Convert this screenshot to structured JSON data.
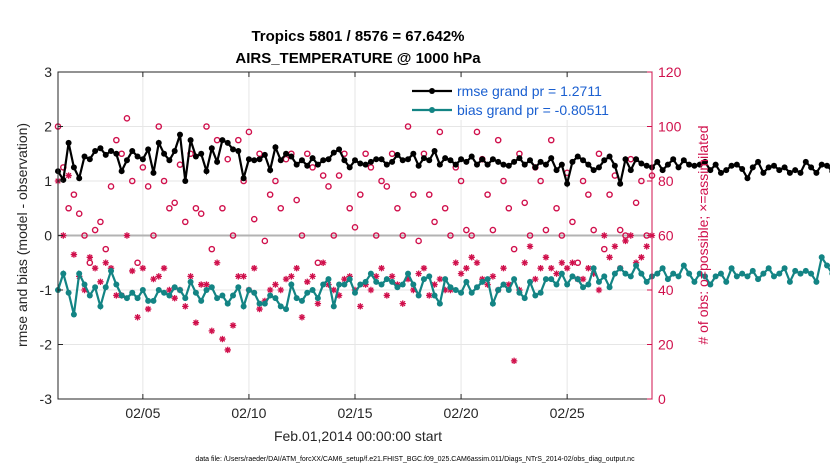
{
  "chart_data": {
    "type": "line",
    "title": "Tropics 5801 / 8576 = 67.642%",
    "subtitle": "AIRS_TEMPERATURE @ 1000 hPa",
    "xlabel": "Feb.01,2014 00:00:00 start",
    "ylabel_left": "rmse and bias (model - observation)",
    "ylabel_right": "# of obs: o=possible; ×=assimilated",
    "footer": "data file: /Users/raeder/DAI/ATM_forcXX/CAM6_setup/f.e21.FHIST_BGC.f09_025.CAM6assim.011/Diags_NTrS_2014-02/obs_diag_output.nc",
    "xlim": [
      1.0,
      29.0
    ],
    "ylim_left": [
      -3,
      3
    ],
    "ylim_right": [
      0,
      120
    ],
    "x_tick_values": [
      5,
      10,
      15,
      20,
      25
    ],
    "x_tick_labels": [
      "02/05",
      "02/10",
      "02/15",
      "02/20",
      "02/25"
    ],
    "y_left_ticks": [
      "-3",
      "-2",
      "-1",
      "0",
      "1",
      "2",
      "3"
    ],
    "y_right_ticks": [
      "0",
      "20",
      "40",
      "60",
      "80",
      "100",
      "120"
    ],
    "zero_line": 0,
    "grid": true,
    "legend": {
      "position": "top-right"
    },
    "colors": {
      "rmse": "#000000",
      "bias": "#138484",
      "obs": "#d0104c",
      "legend_text": "#1a5fd0",
      "zero_line": "#b3b3b3",
      "grid": "#e6e6e6"
    },
    "x_start": 1.0,
    "x_step": 0.25,
    "series": [
      {
        "name": "rmse grand pr = 1.2711",
        "axis": "left",
        "values": [
          1.18,
          1.02,
          1.7,
          1.25,
          1.05,
          1.45,
          1.4,
          1.55,
          1.6,
          1.48,
          1.55,
          1.5,
          1.18,
          1.38,
          1.55,
          1.45,
          1.4,
          1.58,
          1.15,
          1.7,
          1.5,
          1.38,
          1.55,
          1.85,
          1.0,
          1.75,
          1.45,
          1.5,
          1.18,
          1.6,
          1.35,
          1.75,
          1.7,
          1.58,
          1.55,
          1.05,
          1.4,
          1.38,
          1.4,
          1.48,
          1.2,
          1.62,
          1.38,
          1.5,
          1.45,
          1.3,
          1.38,
          1.28,
          1.42,
          1.3,
          1.38,
          1.4,
          1.52,
          1.58,
          1.38,
          1.25,
          1.38,
          1.32,
          1.3,
          1.35,
          1.4,
          1.4,
          1.3,
          1.35,
          1.48,
          1.38,
          1.4,
          1.5,
          1.28,
          1.42,
          1.38,
          1.55,
          1.3,
          1.42,
          1.38,
          1.3,
          1.4,
          1.35,
          1.45,
          1.3,
          1.4,
          1.3,
          1.4,
          1.35,
          1.3,
          1.28,
          1.35,
          1.42,
          1.3,
          1.38,
          1.25,
          1.35,
          1.3,
          1.42,
          1.2,
          1.3,
          0.95,
          1.35,
          1.45,
          1.38,
          1.3,
          1.2,
          1.25,
          1.38,
          1.45,
          1.28,
          0.95,
          1.4,
          1.2,
          1.4,
          1.32,
          1.28,
          1.25,
          1.35,
          1.2,
          1.3,
          1.4,
          1.25,
          1.38,
          1.3,
          1.28,
          1.3,
          1.35,
          1.2,
          1.3,
          1.15,
          1.2,
          1.28,
          1.3,
          1.22,
          1.05,
          1.25,
          1.35,
          1.15,
          1.25,
          1.28,
          1.2,
          1.25,
          1.15,
          1.2,
          1.15,
          1.35,
          1.25,
          1.15,
          1.3,
          1.28,
          1.18,
          1.12,
          1.2,
          1.35,
          1.25,
          1.1,
          1.15,
          1.25,
          1.3,
          1.15,
          1.05,
          1.2,
          1.1,
          1.1,
          1.2,
          1.1,
          1.25,
          1.15,
          1.35,
          1.25,
          1.15,
          1.0,
          1.3,
          1.15,
          1.05,
          1.15,
          1.05,
          1.1,
          1.2,
          1.15,
          1.1,
          0.95,
          1.2,
          1.1,
          1.3,
          1.15,
          1.0,
          1.2,
          1.25,
          1.15,
          1.25,
          1.35,
          1.2,
          1.22,
          1.3,
          1.4,
          1.28,
          1.28,
          1.1,
          1.15,
          1.0,
          1.4,
          1.3,
          1.2,
          1.35,
          1.2,
          1.15,
          1.3,
          1.15,
          1.2,
          1.05,
          1.2,
          1.2,
          1.3,
          1.4,
          1.15,
          1.2,
          1.3,
          1.15,
          1.3,
          1.5,
          1.1,
          1.4,
          1.3,
          1.4,
          1.0
        ]
      },
      {
        "name": "bias grand pr = -0.80511",
        "axis": "left",
        "values": [
          -1.0,
          -0.7,
          -1.05,
          -1.45,
          -0.7,
          -0.9,
          -1.1,
          -0.95,
          -1.3,
          -0.95,
          -0.65,
          -0.9,
          -1.1,
          -1.15,
          -1.05,
          -1.15,
          -1.0,
          -1.2,
          -1.2,
          -1.0,
          -1.05,
          -1.1,
          -0.95,
          -1.0,
          -1.15,
          -0.85,
          -1.05,
          -1.2,
          -1.0,
          -0.95,
          -1.15,
          -1.1,
          -1.25,
          -1.1,
          -0.95,
          -1.3,
          -1.0,
          -1.05,
          -1.25,
          -1.25,
          -1.1,
          -1.15,
          -1.3,
          -1.35,
          -0.9,
          -1.15,
          -1.2,
          -1.05,
          -1.0,
          -1.15,
          -0.9,
          -0.8,
          -1.3,
          -0.9,
          -0.9,
          -0.8,
          -1.05,
          -0.9,
          -0.85,
          -0.7,
          -0.85,
          -0.9,
          -0.8,
          -0.85,
          -0.95,
          -0.9,
          -0.7,
          -0.9,
          -1.1,
          -0.8,
          -0.75,
          -1.1,
          -1.25,
          -0.8,
          -0.95,
          -1.0,
          -1.05,
          -0.85,
          -1.05,
          -0.95,
          -0.85,
          -0.8,
          -1.25,
          -1.0,
          -0.9,
          -1.0,
          -0.8,
          -1.05,
          -1.15,
          -0.85,
          -1.1,
          -1.05,
          -0.8,
          -0.8,
          -0.9,
          -0.7,
          -0.9,
          -0.75,
          -0.8,
          -0.95,
          -0.9,
          -0.6,
          -0.85,
          -0.75,
          -0.95,
          -0.7,
          -0.6,
          -0.7,
          -0.75,
          -0.55,
          -0.7,
          -0.85,
          -0.75,
          -0.7,
          -0.6,
          -0.8,
          -0.7,
          -0.75,
          -0.55,
          -0.7,
          -0.85,
          -0.7,
          -0.75,
          -0.9,
          -0.75,
          -0.7,
          -0.85,
          -0.6,
          -0.75,
          -0.7,
          -0.75,
          -0.65,
          -0.8,
          -0.7,
          -0.6,
          -0.75,
          -0.7,
          -0.6,
          -0.85,
          -0.65,
          -0.7,
          -0.65,
          -0.7,
          -0.85,
          -0.4,
          -0.55,
          -0.7,
          -0.6,
          -0.85,
          -0.75,
          -0.5,
          -0.7,
          -0.85,
          -0.65,
          -0.75,
          -0.55,
          -0.6,
          -0.85,
          -0.45,
          -0.6,
          -0.75,
          -0.55,
          -0.7,
          -0.8,
          -0.4,
          -0.7,
          -0.8,
          -0.55,
          -0.75,
          -0.65,
          -0.6,
          -0.5,
          -0.7,
          -0.85,
          -0.6,
          -0.45,
          -0.7,
          -0.65,
          -0.8,
          -0.55,
          -0.75,
          -0.6,
          -0.9,
          -0.7,
          -0.5,
          -0.75,
          -0.65,
          -0.6,
          -1.0,
          -0.7,
          -0.4,
          -0.65,
          -0.55,
          -0.7,
          -0.45,
          -0.6,
          -0.75,
          -0.5,
          -0.65,
          -0.8,
          -0.95,
          -0.65,
          -0.6,
          -0.7,
          -0.55,
          -0.8,
          -0.7,
          -0.6,
          -0.65,
          -1.0,
          -0.6,
          -0.7,
          -0.75,
          -0.55,
          -0.65,
          -1.0,
          -0.55,
          -0.7,
          -0.6,
          -0.8,
          -0.75,
          -0.55,
          -0.7,
          -0.65,
          -0.75,
          -0.6,
          -1.0,
          -0.7,
          -0.45
        ]
      },
      {
        "name": "possible obs",
        "axis": "right",
        "values": [
          100,
          85,
          70,
          75,
          68,
          60,
          50,
          62,
          65,
          55,
          78,
          95,
          90,
          103,
          80,
          50,
          85,
          78,
          60,
          100,
          80,
          70,
          72,
          86,
          65,
          90,
          70,
          68,
          100,
          55,
          95,
          70,
          88,
          60,
          95,
          80,
          98,
          66,
          90,
          58,
          75,
          80,
          70,
          88,
          90,
          73,
          60,
          90,
          85,
          50,
          82,
          78,
          60,
          82,
          90,
          70,
          63,
          75,
          90,
          85,
          60,
          80,
          78,
          90,
          70,
          60,
          100,
          75,
          58,
          90,
          75,
          65,
          98,
          70,
          60,
          85,
          80,
          62,
          60,
          98,
          88,
          75,
          62,
          95,
          80,
          70,
          55,
          90,
          72,
          60,
          85,
          80,
          62,
          95,
          70,
          60,
          83,
          65,
          50,
          80,
          75,
          62,
          90,
          55,
          75,
          82,
          62,
          60,
          88,
          72,
          80,
          60,
          82,
          90,
          78,
          64,
          68,
          85,
          78,
          90,
          60,
          70,
          83,
          75,
          65,
          90,
          80,
          55,
          70,
          85,
          60,
          78,
          62,
          82,
          55,
          70,
          68,
          90,
          78,
          62,
          90,
          70,
          60,
          85,
          63,
          50,
          85,
          72,
          60,
          95,
          80,
          65,
          70,
          90,
          82,
          65,
          68,
          90,
          75,
          55,
          85,
          70,
          62,
          90,
          60,
          45,
          80,
          72,
          62,
          88,
          65,
          60,
          75,
          92,
          80,
          70,
          64,
          85,
          70,
          55,
          95,
          75,
          62,
          90,
          80,
          70,
          68,
          88,
          75,
          62,
          95,
          80,
          60,
          75,
          90,
          82,
          65,
          70,
          92,
          60,
          78,
          90,
          72,
          65,
          80,
          92,
          60,
          85,
          78,
          65,
          95,
          103,
          70,
          85,
          80,
          88,
          60,
          78,
          85,
          80,
          60
        ]
      },
      {
        "name": "assimilated obs",
        "axis": "right",
        "values": [
          80,
          60,
          82,
          53,
          45,
          40,
          52,
          48,
          43,
          50,
          48,
          38,
          38,
          60,
          47,
          30,
          48,
          33,
          44,
          45,
          48,
          40,
          37,
          40,
          34,
          45,
          28,
          42,
          42,
          25,
          50,
          22,
          18,
          27,
          45,
          45,
          40,
          48,
          33,
          36,
          40,
          42,
          40,
          44,
          45,
          48,
          30,
          43,
          45,
          35,
          50,
          42,
          40,
          38,
          44,
          45,
          40,
          34,
          42,
          40,
          45,
          48,
          38,
          45,
          42,
          35,
          44,
          40,
          46,
          48,
          38,
          42,
          44,
          40,
          40,
          50,
          46,
          48,
          52,
          50,
          44,
          42,
          45,
          40,
          48,
          42,
          14,
          40,
          50,
          56,
          44,
          48,
          52,
          48,
          46,
          50,
          48,
          50,
          44,
          44,
          48,
          46,
          40,
          60,
          52,
          56,
          48,
          58,
          60,
          50,
          52,
          56,
          60,
          60,
          52,
          58,
          60,
          55,
          58,
          62,
          50,
          60,
          56,
          55,
          60,
          58,
          50,
          60,
          52,
          60,
          52,
          60,
          56,
          52,
          48,
          54,
          58,
          58,
          60,
          62,
          58,
          50,
          52,
          58,
          60,
          48,
          56,
          60,
          58,
          62,
          60,
          56,
          58,
          65,
          60,
          52,
          58,
          55,
          50,
          60,
          58,
          56,
          52,
          62,
          60,
          58,
          55,
          50,
          60,
          62,
          56,
          58,
          52,
          56,
          60,
          52,
          58,
          60,
          56,
          62,
          58,
          50,
          55,
          60,
          58,
          62,
          56,
          55,
          52,
          60,
          62,
          58,
          60,
          55,
          52,
          58,
          60,
          62,
          70,
          58,
          75,
          60,
          55,
          50,
          58,
          62,
          60,
          60,
          62,
          58,
          75,
          60,
          55,
          60,
          52,
          60,
          58,
          50,
          62,
          58,
          60
        ]
      }
    ]
  }
}
